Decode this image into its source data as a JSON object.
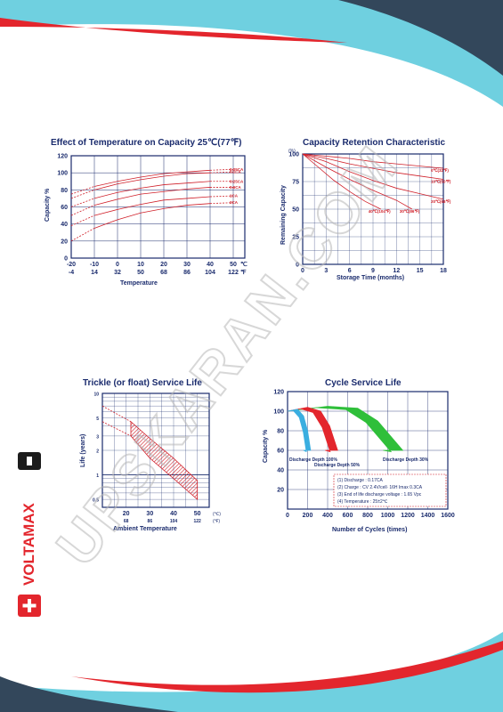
{
  "watermark": "UPSKARAN.COM",
  "brand": {
    "name": "VOLTAMAX",
    "mark_red": "#e3262d",
    "mark_black": "#1c1c1c"
  },
  "colors": {
    "navy": "#1a2b6d",
    "red": "#d0202a",
    "teal": "#6fd0e0",
    "dark": "#33475b"
  },
  "chart_data": [
    {
      "type": "line",
      "title": "Effect of Temperature on Capacity 25℃(77℉)",
      "xlabel": "Temperature",
      "ylabel": "Capacity %",
      "x_ticks_c": [
        "-20",
        "-10",
        "0",
        "10",
        "20",
        "30",
        "40",
        "50"
      ],
      "x_ticks_f": [
        "-4",
        "14",
        "32",
        "50",
        "68",
        "86",
        "104",
        "122"
      ],
      "x_unit_c": "℃",
      "x_unit_f": "℉",
      "y_ticks": [
        "0",
        "20",
        "40",
        "60",
        "80",
        "100",
        "120"
      ],
      "xlim": [
        -20,
        55
      ],
      "ylim": [
        0,
        120
      ],
      "series": [
        {
          "name": "0.05CA",
          "values": [
            [
              -20,
              75
            ],
            [
              -10,
              84
            ],
            [
              0,
              90
            ],
            [
              10,
              95
            ],
            [
              20,
              99
            ],
            [
              30,
              101
            ],
            [
              40,
              103
            ],
            [
              50,
              104
            ]
          ]
        },
        {
          "name": "0.1CA",
          "values": [
            [
              -20,
              70
            ],
            [
              -10,
              80
            ],
            [
              0,
              87
            ],
            [
              10,
              92
            ],
            [
              20,
              96
            ],
            [
              30,
              99
            ],
            [
              40,
              100
            ],
            [
              50,
              101
            ]
          ]
        },
        {
          "name": "0.25CA",
          "values": [
            [
              -20,
              60
            ],
            [
              -10,
              70
            ],
            [
              0,
              77
            ],
            [
              10,
              82
            ],
            [
              20,
              86
            ],
            [
              30,
              88
            ],
            [
              40,
              90
            ],
            [
              50,
              90
            ]
          ]
        },
        {
          "name": "0.6CA",
          "values": [
            [
              -20,
              50
            ],
            [
              -10,
              62
            ],
            [
              0,
              69
            ],
            [
              10,
              75
            ],
            [
              20,
              78
            ],
            [
              30,
              81
            ],
            [
              40,
              83
            ],
            [
              50,
              83
            ]
          ]
        },
        {
          "name": "1CA",
          "values": [
            [
              -20,
              38
            ],
            [
              -10,
              50
            ],
            [
              0,
              57
            ],
            [
              10,
              63
            ],
            [
              20,
              68
            ],
            [
              30,
              70
            ],
            [
              40,
              72
            ],
            [
              50,
              73
            ]
          ]
        },
        {
          "name": "2CA",
          "values": [
            [
              -20,
              20
            ],
            [
              -10,
              35
            ],
            [
              0,
              45
            ],
            [
              10,
              53
            ],
            [
              20,
              58
            ],
            [
              30,
              62
            ],
            [
              40,
              64
            ],
            [
              50,
              65
            ]
          ]
        }
      ]
    },
    {
      "type": "line",
      "title": "Capacity Retention Characteristic",
      "xlabel": "Storage Time (months)",
      "ylabel": "Remaining Capacity",
      "y_unit": "(%)",
      "x_ticks": [
        "0",
        "3",
        "6",
        "9",
        "12",
        "15",
        "18"
      ],
      "y_ticks": [
        "0",
        "25",
        "50",
        "75",
        "100"
      ],
      "xlim": [
        0,
        18
      ],
      "ylim": [
        0,
        100
      ],
      "series": [
        {
          "name": "0℃(32℉)",
          "values": [
            [
              0,
              100
            ],
            [
              3,
              98
            ],
            [
              6,
              96
            ],
            [
              9,
              93
            ],
            [
              12,
              91
            ],
            [
              15,
              89
            ],
            [
              18,
              87
            ]
          ]
        },
        {
          "name": "10℃(50℉)",
          "values": [
            [
              0,
              100
            ],
            [
              3,
              96
            ],
            [
              6,
              91
            ],
            [
              9,
              87
            ],
            [
              12,
              83
            ],
            [
              15,
              80
            ],
            [
              18,
              77
            ]
          ]
        },
        {
          "name": "20℃(68℉)",
          "values": [
            [
              0,
              100
            ],
            [
              3,
              93
            ],
            [
              6,
              84
            ],
            [
              9,
              76
            ],
            [
              12,
              69
            ],
            [
              15,
              64
            ],
            [
              18,
              59
            ]
          ]
        },
        {
          "name": "30℃(86℉)",
          "values": [
            [
              0,
              100
            ],
            [
              3,
              88
            ],
            [
              6,
              77
            ],
            [
              9,
              67
            ],
            [
              12,
              58
            ],
            [
              14,
              50
            ]
          ]
        },
        {
          "name": "40℃(104℉)",
          "values": [
            [
              0,
              100
            ],
            [
              2,
              88
            ],
            [
              4,
              76
            ],
            [
              6,
              66
            ],
            [
              8,
              57
            ],
            [
              10,
              50
            ]
          ]
        }
      ]
    },
    {
      "type": "area",
      "title": "Trickle (or float) Service Life",
      "xlabel": "Ambient Temperature",
      "ylabel": "Life (years)",
      "x_ticks_c": [
        "20",
        "30",
        "40",
        "50"
      ],
      "x_ticks_f": [
        "68",
        "86",
        "104",
        "122"
      ],
      "x_unit_c": "(℃)",
      "x_unit_f": "(℉)",
      "y_ticks": [
        "10",
        "5",
        "3",
        "2",
        "1",
        "0.5"
      ],
      "yscale": "log",
      "xlim": [
        10,
        55
      ],
      "ylim": [
        0.4,
        10
      ],
      "band_upper": [
        [
          22,
          4.5
        ],
        [
          30,
          2.8
        ],
        [
          40,
          1.6
        ],
        [
          50,
          0.85
        ]
      ],
      "band_lower": [
        [
          22,
          3.0
        ],
        [
          30,
          1.6
        ],
        [
          40,
          0.9
        ],
        [
          50,
          0.5
        ]
      ],
      "dashed": [
        [
          10,
          7
        ],
        [
          22,
          4.5
        ]
      ]
    },
    {
      "type": "area",
      "title": "Cycle Service Life",
      "xlabel": "Number of Cycles (times)",
      "ylabel": "Capacity %",
      "x_ticks": [
        "0",
        "200",
        "400",
        "600",
        "800",
        "1000",
        "1200",
        "1400",
        "1600"
      ],
      "y_ticks": [
        "20",
        "40",
        "60",
        "80",
        "100",
        "120"
      ],
      "xlim": [
        0,
        1600
      ],
      "ylim": [
        0,
        120
      ],
      "series": [
        {
          "name": "Discharge Depth 100%",
          "color": "#3aaee0",
          "values": [
            [
              0,
              100
            ],
            [
              100,
              102
            ],
            [
              160,
              95
            ],
            [
              200,
              80
            ],
            [
              230,
              60
            ]
          ]
        },
        {
          "name": "Discharge Depth 50%",
          "color": "#e3262d",
          "values": [
            [
              0,
              100
            ],
            [
              200,
              104
            ],
            [
              330,
              100
            ],
            [
              420,
              85
            ],
            [
              500,
              60
            ]
          ]
        },
        {
          "name": "Discharge Depth 30%",
          "color": "#2fbf3a",
          "values": [
            [
              0,
              100
            ],
            [
              400,
              105
            ],
            [
              700,
              103
            ],
            [
              900,
              90
            ],
            [
              1150,
              60
            ]
          ]
        }
      ],
      "notes": [
        "(1) Discharge : 0.17CA",
        "(2) Charge : CV 2.4V/cell∙ 16H Imax 0.3CA",
        "(3) End of life discharge voltage : 1.65 Vpc",
        "(4) Temperature : 25±2℃"
      ]
    }
  ]
}
